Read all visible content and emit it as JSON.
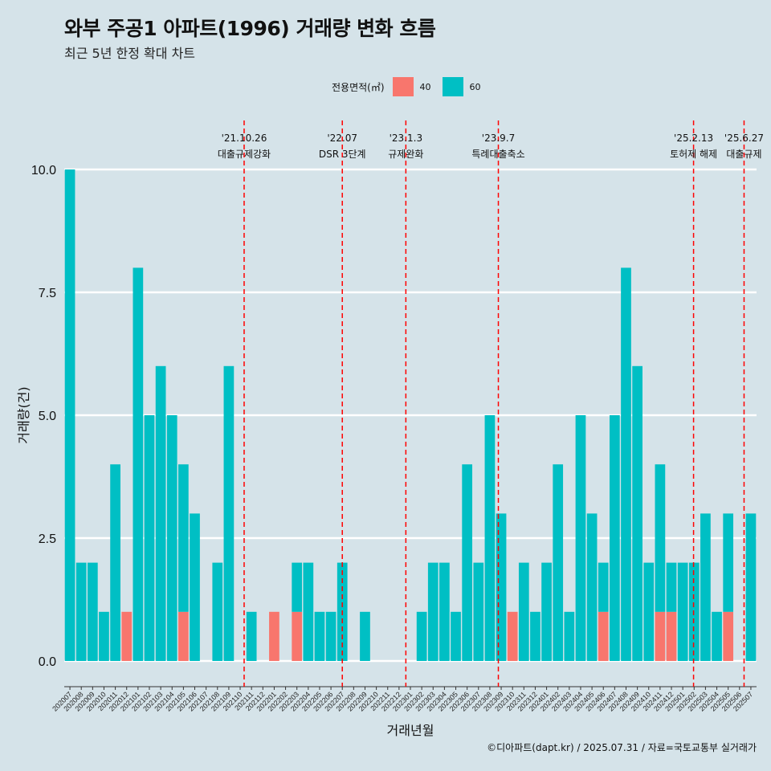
{
  "header": {
    "title": "와부 주공1 아파트(1996) 거래량 변화 흐름",
    "subtitle": "최근 5년 한정 확대 차트"
  },
  "legend": {
    "title": "전용면적(㎡)",
    "items": [
      {
        "label": "40",
        "color": "#f8766d"
      },
      {
        "label": "60",
        "color": "#00bfc4"
      }
    ]
  },
  "caption": "©디아파트(dapt.kr) / 2025.07.31 / 자료=국토교통부 실거래가",
  "chart_data": {
    "type": "bar",
    "stacked": true,
    "xlabel": "거래년월",
    "ylabel": "거래량(건)",
    "ylim": [
      0,
      10
    ],
    "yticks": [
      "0.0",
      "2.5",
      "5.0",
      "7.5",
      "10.0"
    ],
    "categories": [
      "202007",
      "202008",
      "202009",
      "202010",
      "202011",
      "202012",
      "202101",
      "202102",
      "202103",
      "202104",
      "202105",
      "202106",
      "202107",
      "202108",
      "202109",
      "202110",
      "202111",
      "202112",
      "202201",
      "202202",
      "202203",
      "202204",
      "202205",
      "202206",
      "202207",
      "202208",
      "202209",
      "202210",
      "202211",
      "202212",
      "202301",
      "202302",
      "202303",
      "202304",
      "202305",
      "202306",
      "202307",
      "202308",
      "202309",
      "202310",
      "202311",
      "202312",
      "202401",
      "202402",
      "202403",
      "202404",
      "202405",
      "202406",
      "202407",
      "202408",
      "202409",
      "202410",
      "202411",
      "202412",
      "202501",
      "202502",
      "202503",
      "202504",
      "202505",
      "202506",
      "202507"
    ],
    "series": [
      {
        "name": "40",
        "color": "#f8766d",
        "values": [
          0,
          0,
          0,
          0,
          0,
          1,
          0,
          0,
          0,
          0,
          1,
          0,
          0,
          0,
          0,
          0,
          0,
          0,
          1,
          0,
          1,
          0,
          0,
          0,
          0,
          0,
          0,
          0,
          0,
          0,
          0,
          0,
          0,
          0,
          0,
          0,
          0,
          0,
          0,
          1,
          0,
          0,
          0,
          0,
          0,
          0,
          0,
          1,
          0,
          0,
          0,
          0,
          1,
          1,
          0,
          0,
          0,
          0,
          1,
          0,
          0
        ]
      },
      {
        "name": "60",
        "color": "#00bfc4",
        "values": [
          10,
          2,
          2,
          1,
          4,
          0,
          8,
          5,
          6,
          5,
          3,
          3,
          0,
          2,
          6,
          0,
          1,
          0,
          0,
          0,
          1,
          2,
          1,
          1,
          2,
          0,
          1,
          0,
          0,
          0,
          0,
          1,
          2,
          2,
          1,
          4,
          2,
          5,
          3,
          0,
          2,
          1,
          2,
          4,
          1,
          5,
          3,
          1,
          5,
          8,
          6,
          2,
          3,
          1,
          2,
          2,
          3,
          1,
          2,
          0,
          3
        ]
      }
    ],
    "annotations": [
      {
        "date": "'21.10.26",
        "label": "대출규제강화",
        "after": "202110",
        "frac": 0.85
      },
      {
        "date": "'22.07",
        "label": "DSR 3단계",
        "after": "202207",
        "frac": 0.5
      },
      {
        "date": "'23.1.3",
        "label": "규제완화",
        "after": "202301",
        "frac": 0.1
      },
      {
        "date": "'23.9.7",
        "label": "특례대출축소",
        "after": "202309",
        "frac": 0.25
      },
      {
        "date": "'25.2.13",
        "label": "토허제 해제",
        "after": "202502",
        "frac": 0.45
      },
      {
        "date": "'25.6.27",
        "label": "대출규제",
        "after": "202506",
        "frac": 0.9
      }
    ],
    "grid": true
  }
}
